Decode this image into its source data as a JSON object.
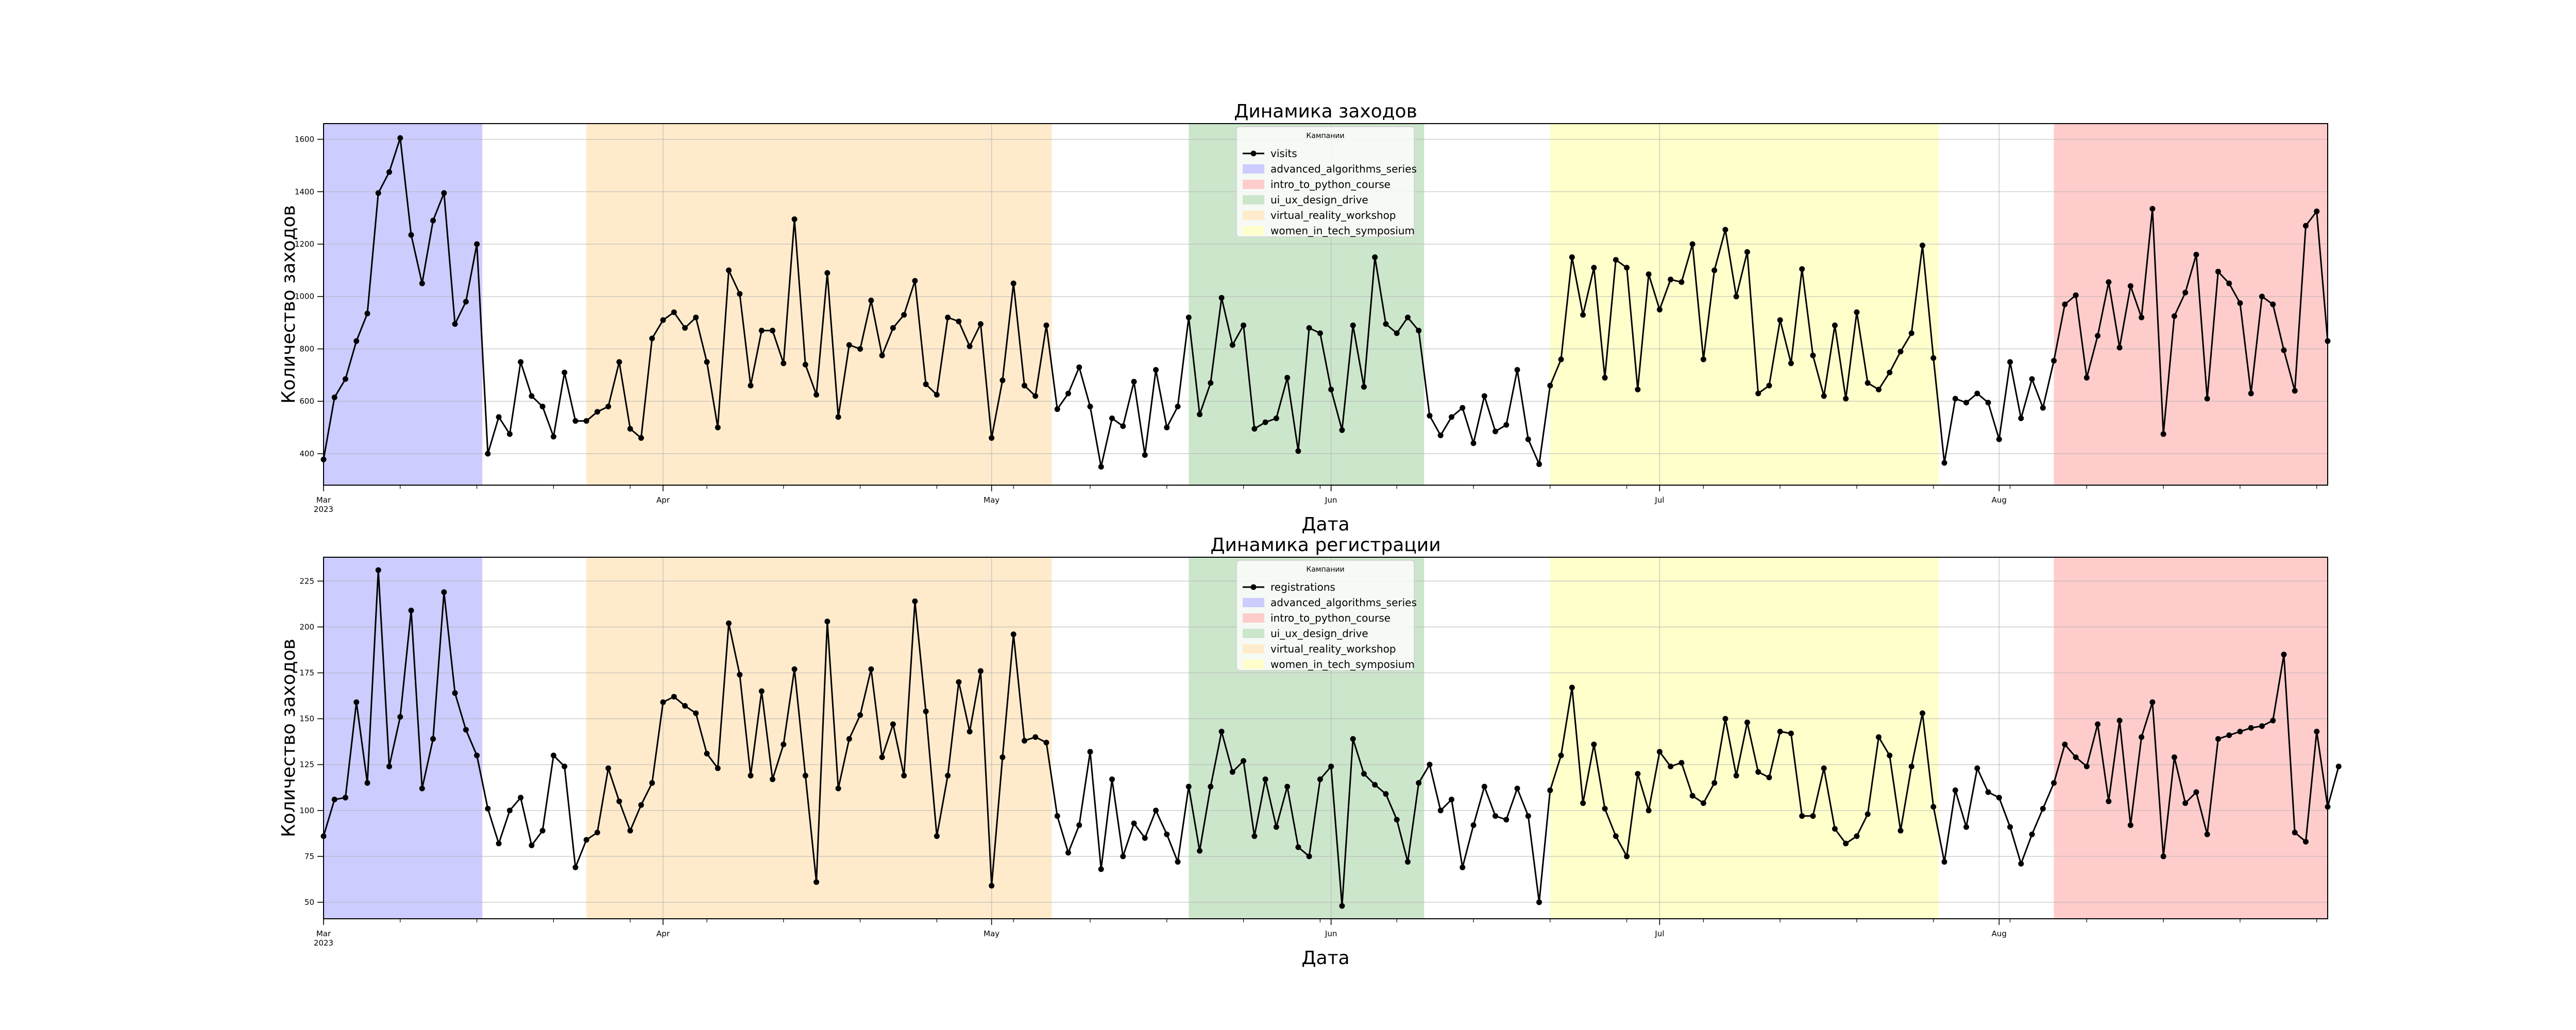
{
  "chart_data": [
    {
      "type": "line",
      "title": "Динамика заходов",
      "xlabel": "Дата",
      "ylabel": "Количество заходов",
      "x_start": "2023-03-01",
      "x_end": "2023-08-31",
      "x_ticks": [
        {
          "date": "2023-03-01",
          "label": "Mar",
          "sublabel": "2023"
        },
        {
          "date": "2023-04-01",
          "label": "Apr",
          "sublabel": ""
        },
        {
          "date": "2023-05-01",
          "label": "May",
          "sublabel": ""
        },
        {
          "date": "2023-06-01",
          "label": "Jun",
          "sublabel": ""
        },
        {
          "date": "2023-07-01",
          "label": "Jul",
          "sublabel": ""
        },
        {
          "date": "2023-08-01",
          "label": "Aug",
          "sublabel": ""
        }
      ],
      "y_ticks": [
        400,
        600,
        800,
        1000,
        1200,
        1400,
        1600
      ],
      "ylim": [
        280,
        1660
      ],
      "grid": true,
      "legend": {
        "title": "Кампании",
        "placement": "top-center",
        "entries": [
          "visits",
          "advanced_algorithms_series",
          "intro_to_python_course",
          "ui_ux_design_drive",
          "virtual_reality_workshop",
          "women_in_tech_symposium"
        ]
      },
      "series": [
        {
          "name": "visits",
          "color": "#000000",
          "values": [
            378,
            615,
            685,
            830,
            935,
            1395,
            1475,
            1605,
            1235,
            1050,
            1290,
            1395,
            895,
            980,
            1200,
            400,
            540,
            475,
            750,
            620,
            580,
            465,
            710,
            525,
            525,
            560,
            580,
            750,
            495,
            460,
            840,
            910,
            940,
            880,
            920,
            750,
            500,
            1100,
            1010,
            660,
            870,
            870,
            745,
            1295,
            740,
            625,
            1090,
            540,
            815,
            800,
            985,
            775,
            880,
            930,
            1060,
            665,
            625,
            920,
            905,
            810,
            895,
            460,
            680,
            1050,
            660,
            620,
            890,
            570,
            630,
            730,
            580,
            350,
            535,
            505,
            675,
            395,
            720,
            500,
            580,
            920,
            550,
            670,
            995,
            815,
            890,
            495,
            520,
            535,
            690,
            410,
            880,
            860,
            645,
            490,
            890,
            655,
            1150,
            895,
            860,
            920,
            870,
            545,
            470,
            540,
            575,
            440,
            620,
            485,
            510,
            720,
            455,
            360,
            660,
            760,
            1150,
            930,
            1110,
            690,
            1140,
            1110,
            645,
            1085,
            950,
            1065,
            1055,
            1200,
            760,
            1100,
            1255,
            1000,
            1170,
            630,
            660,
            910,
            745,
            1105,
            775,
            620,
            890,
            610,
            940,
            670,
            645,
            710,
            790,
            860,
            1195,
            765,
            365,
            610,
            595,
            630,
            595,
            455,
            750,
            535,
            685,
            575,
            755,
            970,
            1005,
            690,
            850,
            1055,
            805,
            1040,
            920,
            1335,
            475,
            925,
            1015,
            1160,
            610,
            1095,
            1050,
            975,
            630,
            1000,
            970,
            795,
            640,
            1270,
            1325,
            830
          ]
        }
      ],
      "campaigns": [
        {
          "name": "advanced_algorithms_series",
          "start": "2023-03-01",
          "end": "2023-03-15",
          "color": "#ccccff"
        },
        {
          "name": "virtual_reality_workshop",
          "start": "2023-03-25",
          "end": "2023-05-06",
          "color": "#ffebcc"
        },
        {
          "name": "ui_ux_design_drive",
          "start": "2023-05-19",
          "end": "2023-06-09",
          "color": "#cce6cc"
        },
        {
          "name": "women_in_tech_symposium",
          "start": "2023-06-21",
          "end": "2023-07-26",
          "color": "#ffffcc"
        },
        {
          "name": "intro_to_python_course",
          "start": "2023-08-06",
          "end": "2023-08-31",
          "color": "#ffcccc"
        }
      ]
    },
    {
      "type": "line",
      "title": "Динамика регистрации",
      "xlabel": "Дата",
      "ylabel": "Количество заходов",
      "x_start": "2023-03-01",
      "x_end": "2023-08-31",
      "x_ticks": [
        {
          "date": "2023-03-01",
          "label": "Mar",
          "sublabel": "2023"
        },
        {
          "date": "2023-04-01",
          "label": "Apr",
          "sublabel": ""
        },
        {
          "date": "2023-05-01",
          "label": "May",
          "sublabel": ""
        },
        {
          "date": "2023-06-01",
          "label": "Jun",
          "sublabel": ""
        },
        {
          "date": "2023-07-01",
          "label": "Jul",
          "sublabel": ""
        },
        {
          "date": "2023-08-01",
          "label": "Aug",
          "sublabel": ""
        }
      ],
      "y_ticks": [
        50,
        75,
        100,
        125,
        150,
        175,
        200,
        225
      ],
      "ylim": [
        41,
        238
      ],
      "grid": true,
      "legend": {
        "title": "Кампании",
        "placement": "top-center",
        "entries": [
          "registrations",
          "advanced_algorithms_series",
          "intro_to_python_course",
          "ui_ux_design_drive",
          "virtual_reality_workshop",
          "women_in_tech_symposium"
        ]
      },
      "series": [
        {
          "name": "registrations",
          "color": "#000000",
          "values": [
            86,
            106,
            107,
            159,
            115,
            231,
            124,
            151,
            209,
            112,
            139,
            219,
            164,
            144,
            130,
            101,
            82,
            100,
            107,
            81,
            89,
            130,
            124,
            69,
            84,
            88,
            123,
            105,
            89,
            103,
            115,
            159,
            162,
            157,
            153,
            131,
            123,
            202,
            174,
            119,
            165,
            117,
            136,
            177,
            119,
            61,
            203,
            112,
            139,
            152,
            177,
            129,
            147,
            119,
            214,
            154,
            86,
            119,
            170,
            143,
            176,
            59,
            129,
            196,
            138,
            140,
            137,
            97,
            77,
            92,
            132,
            68,
            117,
            75,
            93,
            85,
            100,
            87,
            72,
            113,
            78,
            113,
            143,
            121,
            127,
            86,
            117,
            91,
            113,
            80,
            75,
            117,
            124,
            48,
            139,
            120,
            114,
            109,
            95,
            72,
            115,
            125,
            100,
            106,
            69,
            92,
            113,
            97,
            95,
            112,
            97,
            50,
            111,
            130,
            167,
            104,
            136,
            101,
            86,
            75,
            120,
            100,
            132,
            124,
            126,
            108,
            104,
            115,
            150,
            119,
            148,
            121,
            118,
            143,
            142,
            97,
            97,
            123,
            90,
            82,
            86,
            98,
            140,
            130,
            89,
            124,
            153,
            102,
            72,
            111,
            91,
            123,
            110,
            107,
            91,
            71,
            87,
            101,
            115,
            136,
            129,
            124,
            147,
            105,
            149,
            92,
            140,
            159,
            75,
            129,
            104,
            110,
            87,
            139,
            141,
            143,
            145,
            146,
            149,
            185,
            88,
            83,
            143,
            102,
            124
          ]
        }
      ],
      "campaigns": [
        {
          "name": "advanced_algorithms_series",
          "start": "2023-03-01",
          "end": "2023-03-15",
          "color": "#ccccff"
        },
        {
          "name": "virtual_reality_workshop",
          "start": "2023-03-25",
          "end": "2023-05-06",
          "color": "#ffebcc"
        },
        {
          "name": "ui_ux_design_drive",
          "start": "2023-05-19",
          "end": "2023-06-09",
          "color": "#cce6cc"
        },
        {
          "name": "women_in_tech_symposium",
          "start": "2023-06-21",
          "end": "2023-07-26",
          "color": "#ffffcc"
        },
        {
          "name": "intro_to_python_course",
          "start": "2023-08-06",
          "end": "2023-08-31",
          "color": "#ffcccc"
        }
      ]
    }
  ],
  "colors": {
    "advanced_algorithms_series": "#ccccff",
    "intro_to_python_course": "#ffcccc",
    "ui_ux_design_drive": "#cce6cc",
    "virtual_reality_workshop": "#ffebcc",
    "women_in_tech_symposium": "#ffffcc",
    "line": "#000000"
  }
}
